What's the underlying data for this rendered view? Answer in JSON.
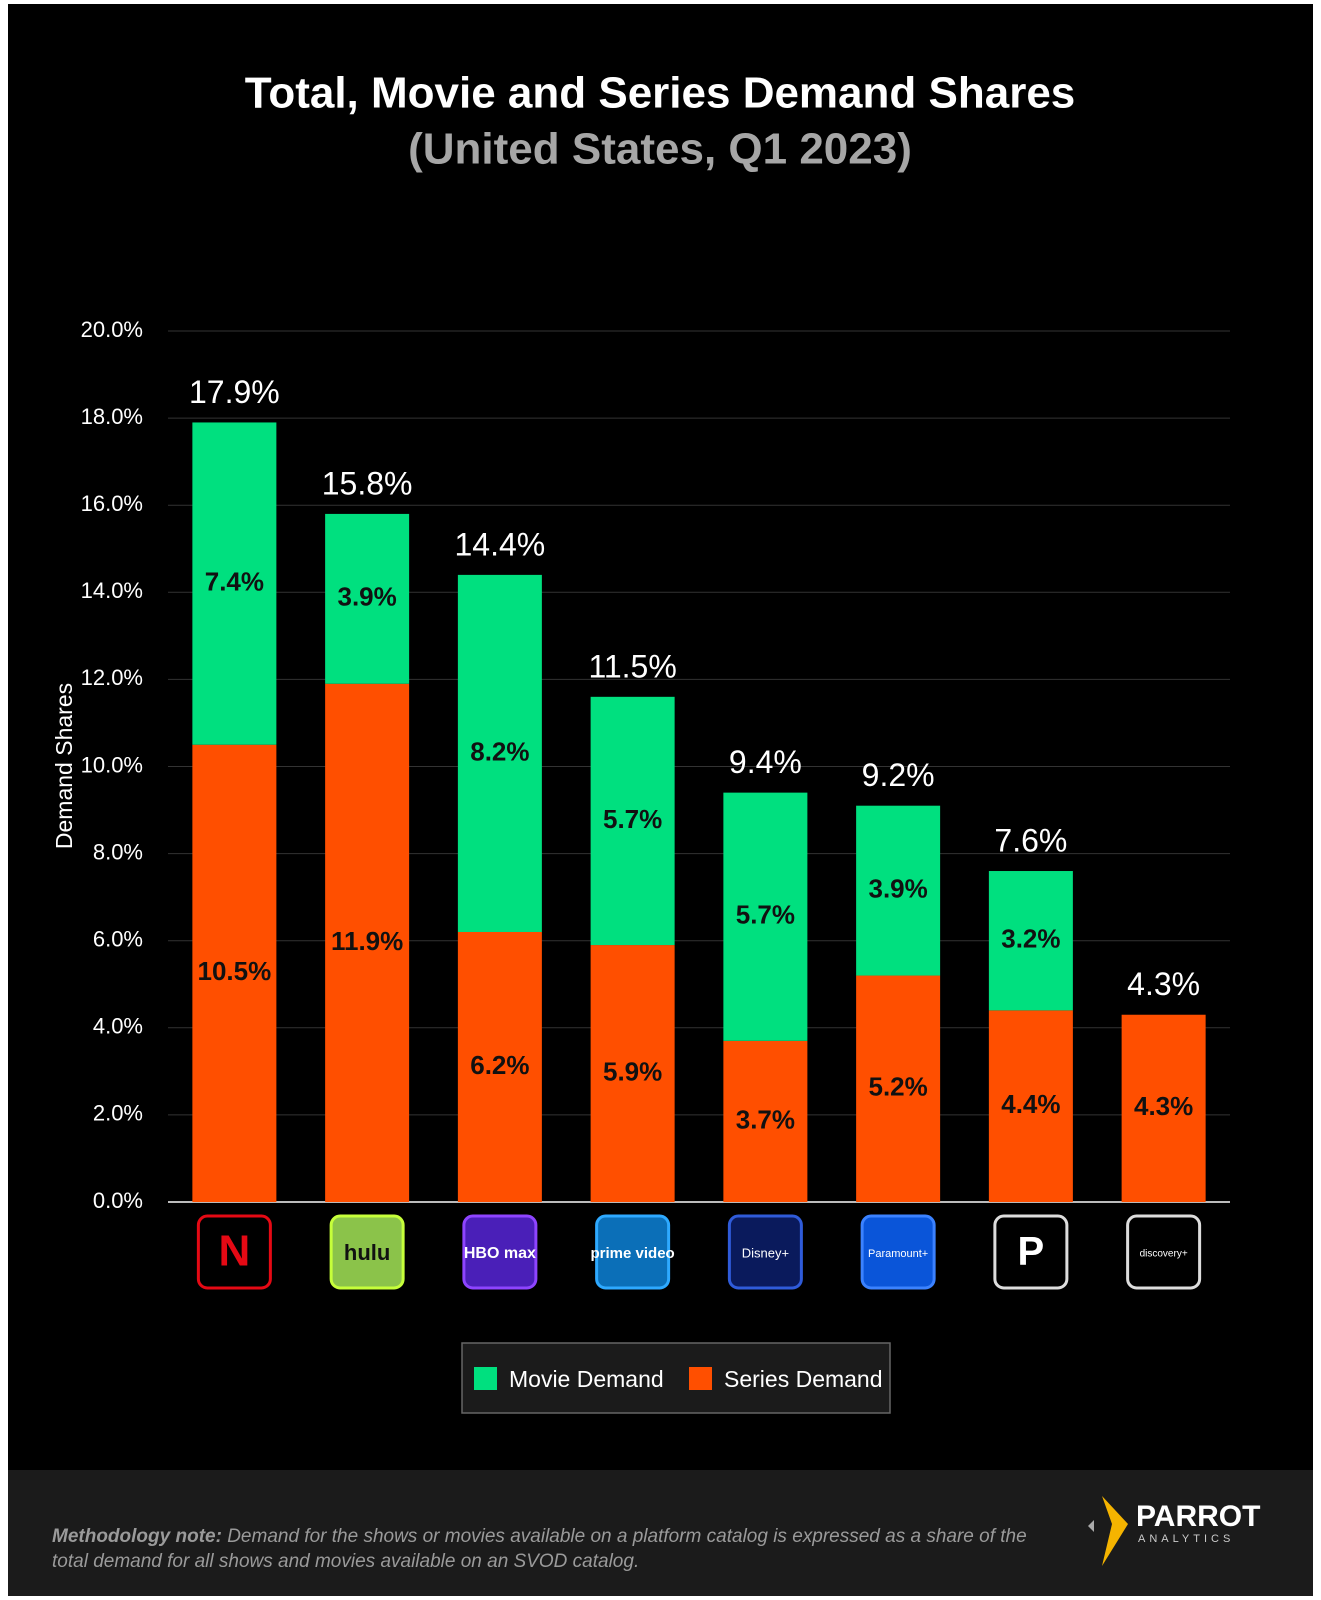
{
  "chart_data": {
    "type": "bar",
    "stacked": true,
    "title": "Total, Movie and Series Demand Shares",
    "subtitle": "(United States, Q1 2023)",
    "y_label": "Demand Shares",
    "categories": [
      "N",
      "hulu",
      "HBO max",
      "prime video",
      "Disney+",
      "Paramount+",
      "P",
      "discovery+"
    ],
    "series": [
      {
        "name": "Series Demand",
        "color": "#ff4f00",
        "values": [
          10.5,
          11.9,
          6.2,
          5.9,
          3.7,
          5.2,
          4.4,
          4.3
        ],
        "value_labels": [
          "10.5%",
          "11.9%",
          "6.2%",
          "5.9%",
          "3.7%",
          "5.2%",
          "4.4%",
          "4.3%"
        ]
      },
      {
        "name": "Movie Demand",
        "color": "#00e07f",
        "values": [
          7.4,
          3.9,
          8.2,
          5.7,
          5.7,
          3.9,
          3.2,
          null
        ],
        "value_labels": [
          "7.4%",
          "3.9%",
          "8.2%",
          "5.7%",
          "5.7%",
          "3.9%",
          "3.2%",
          null
        ]
      }
    ],
    "totals": [
      17.9,
      15.8,
      14.4,
      11.5,
      9.4,
      9.2,
      7.6,
      4.3
    ],
    "total_labels": [
      "17.9%",
      "15.8%",
      "14.4%",
      "11.5%",
      "9.4%",
      "9.2%",
      "7.6%",
      "4.3%"
    ],
    "ylim": [
      0,
      20
    ],
    "yticks": [
      {
        "value": 0,
        "label": "0.0%"
      },
      {
        "value": 2,
        "label": "2.0%"
      },
      {
        "value": 4,
        "label": "4.0%"
      },
      {
        "value": 6,
        "label": "6.0%"
      },
      {
        "value": 8,
        "label": "8.0%"
      },
      {
        "value": 10,
        "label": "10.0%"
      },
      {
        "value": 12,
        "label": "12.0%"
      },
      {
        "value": 14,
        "label": "14.0%"
      },
      {
        "value": 16,
        "label": "16.0%"
      },
      {
        "value": 18,
        "label": "18.0%"
      },
      {
        "value": 20,
        "label": "20.0%"
      }
    ],
    "grid": true,
    "legend": "bottom",
    "legend_order": [
      "Movie Demand",
      "Series Demand"
    ]
  },
  "footer": {
    "note_label": "Methodology note:",
    "note": "Demand for the shows or movies available on a platform catalog is expressed as a share of the total demand for all shows and movies available on an SVOD catalog.",
    "brand": "PARROT",
    "brand_sub": "ANALYTICS"
  }
}
